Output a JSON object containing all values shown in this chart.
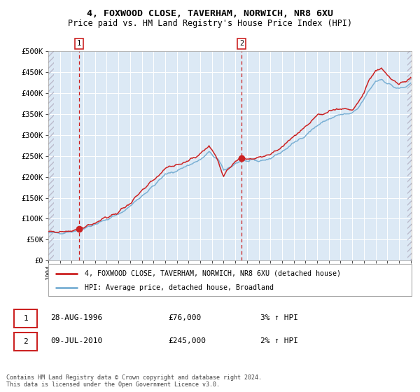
{
  "title_line1": "4, FOXWOOD CLOSE, TAVERHAM, NORWICH, NR8 6XU",
  "title_line2": "Price paid vs. HM Land Registry's House Price Index (HPI)",
  "ylabel_ticks": [
    "£0",
    "£50K",
    "£100K",
    "£150K",
    "£200K",
    "£250K",
    "£300K",
    "£350K",
    "£400K",
    "£450K",
    "£500K"
  ],
  "ylabel_values": [
    0,
    50000,
    100000,
    150000,
    200000,
    250000,
    300000,
    350000,
    400000,
    450000,
    500000
  ],
  "ylim": [
    0,
    500000
  ],
  "sale1_t": 1996.647,
  "sale1_price": 76000,
  "sale1_label": "28-AUG-1996",
  "sale1_pct": "3% ↑ HPI",
  "sale2_t": 2010.521,
  "sale2_price": 245000,
  "sale2_label": "09-JUL-2010",
  "sale2_pct": "2% ↑ HPI",
  "hpi_line_color": "#7ab0d4",
  "property_line_color": "#cc2222",
  "sale_marker_color": "#cc2222",
  "vline_color": "#cc2222",
  "bg_color": "#dce9f5",
  "grid_color": "#ffffff",
  "legend_label1": "4, FOXWOOD CLOSE, TAVERHAM, NORWICH, NR8 6XU (detached house)",
  "legend_label2": "HPI: Average price, detached house, Broadland",
  "footer": "Contains HM Land Registry data © Crown copyright and database right 2024.\nThis data is licensed under the Open Government Licence v3.0.",
  "x_start_year": 1994,
  "x_end_year": 2025,
  "hpi_anchors_t": [
    1994.0,
    1995.0,
    1996.0,
    1996.5,
    1997.0,
    1998.0,
    1999.0,
    2000.0,
    2001.0,
    2002.0,
    2003.0,
    2004.0,
    2005.0,
    2006.0,
    2007.0,
    2007.75,
    2008.5,
    2009.0,
    2009.5,
    2010.0,
    2010.5,
    2011.0,
    2012.0,
    2013.0,
    2014.0,
    2015.0,
    2016.0,
    2017.0,
    2018.0,
    2019.0,
    2020.0,
    2020.5,
    2021.0,
    2021.5,
    2022.0,
    2022.5,
    2023.0,
    2023.5,
    2024.0,
    2024.5,
    2025.0
  ],
  "hpi_anchors_v": [
    65000,
    67000,
    70000,
    73000,
    78000,
    87000,
    98000,
    110000,
    130000,
    155000,
    178000,
    205000,
    215000,
    228000,
    240000,
    258000,
    242000,
    215000,
    222000,
    232000,
    238000,
    237000,
    237000,
    244000,
    260000,
    280000,
    300000,
    322000,
    338000,
    348000,
    350000,
    363000,
    385000,
    408000,
    428000,
    433000,
    424000,
    415000,
    410000,
    413000,
    422000
  ],
  "prop_anchors_t": [
    1994.0,
    1995.0,
    1996.0,
    1996.647,
    1997.0,
    1998.0,
    1999.0,
    2000.0,
    2001.0,
    2002.0,
    2003.0,
    2004.0,
    2005.0,
    2006.0,
    2007.0,
    2007.75,
    2008.3,
    2009.0,
    2009.3,
    2010.0,
    2010.521,
    2011.0,
    2012.0,
    2013.0,
    2014.0,
    2015.0,
    2016.0,
    2017.0,
    2018.0,
    2019.0,
    2020.0,
    2020.5,
    2021.0,
    2021.5,
    2022.0,
    2022.5,
    2023.0,
    2023.5,
    2024.0,
    2024.5,
    2025.0
  ],
  "prop_anchors_v": [
    67000,
    69000,
    72000,
    76000,
    80000,
    90000,
    102000,
    116000,
    138000,
    165000,
    190000,
    218000,
    228000,
    240000,
    255000,
    273000,
    252000,
    205000,
    215000,
    240000,
    245000,
    243000,
    244000,
    253000,
    272000,
    297000,
    318000,
    342000,
    357000,
    364000,
    360000,
    377000,
    400000,
    432000,
    452000,
    456000,
    443000,
    430000,
    422000,
    427000,
    437000
  ]
}
